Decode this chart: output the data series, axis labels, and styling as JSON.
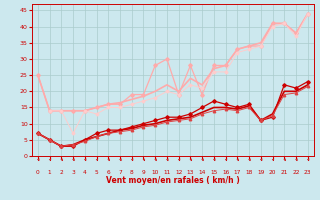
{
  "bg_color": "#cce8ee",
  "grid_color": "#aacccc",
  "xlabel": "Vent moyen/en rafales ( km/h )",
  "xlabel_color": "#cc0000",
  "tick_color": "#cc0000",
  "xlim": [
    -0.5,
    23.5
  ],
  "ylim": [
    0,
    47
  ],
  "yticks": [
    0,
    5,
    10,
    15,
    20,
    25,
    30,
    35,
    40,
    45
  ],
  "xticks": [
    0,
    1,
    2,
    3,
    4,
    5,
    6,
    7,
    8,
    9,
    10,
    11,
    12,
    13,
    14,
    15,
    16,
    17,
    18,
    19,
    20,
    21,
    22,
    23
  ],
  "series": [
    {
      "x": [
        0,
        1,
        2,
        3,
        4,
        5,
        6,
        7,
        8,
        9,
        10,
        11,
        12,
        13,
        14,
        15,
        16,
        17,
        18,
        19,
        20,
        21,
        22,
        23
      ],
      "y": [
        7,
        5,
        3,
        3,
        5,
        7,
        8,
        8,
        9,
        10,
        11,
        12,
        12,
        13,
        15,
        17,
        16,
        15,
        16,
        11,
        12,
        22,
        21,
        23
      ],
      "color": "#cc0000",
      "lw": 0.9,
      "marker": "D",
      "ms": 1.8
    },
    {
      "x": [
        0,
        1,
        2,
        3,
        4,
        5,
        6,
        7,
        8,
        9,
        10,
        11,
        12,
        13,
        14,
        15,
        16,
        17,
        18,
        19,
        20,
        21,
        22,
        23
      ],
      "y": [
        7,
        5,
        3,
        3.5,
        5,
        6,
        7,
        8,
        8.5,
        9.5,
        10,
        11,
        11.5,
        12,
        13.5,
        15,
        15,
        14.5,
        15.5,
        11,
        13,
        20,
        20,
        22
      ],
      "color": "#cc0000",
      "lw": 1.2,
      "marker": null,
      "ms": 0
    },
    {
      "x": [
        0,
        1,
        2,
        3,
        4,
        5,
        6,
        7,
        8,
        9,
        10,
        11,
        12,
        13,
        14,
        15,
        16,
        17,
        18,
        19,
        20,
        21,
        22,
        23
      ],
      "y": [
        7,
        5,
        3,
        3.5,
        4.5,
        6,
        7,
        7.5,
        8,
        9,
        9.5,
        10.5,
        11,
        11.5,
        13,
        14,
        14.5,
        14,
        15,
        11,
        12.5,
        19,
        19.5,
        21.5
      ],
      "color": "#dd4444",
      "lw": 0.7,
      "marker": "^",
      "ms": 1.8
    },
    {
      "x": [
        0,
        1,
        2,
        3,
        4,
        5,
        6,
        7,
        8,
        9,
        10,
        11,
        12,
        13,
        14,
        15,
        16,
        17,
        18,
        19,
        20,
        21,
        22,
        23
      ],
      "y": [
        25,
        14,
        14,
        14,
        14,
        15,
        16,
        16,
        19,
        19,
        28,
        30,
        19,
        28,
        19,
        28,
        28,
        33,
        34,
        34,
        41,
        41,
        38,
        44
      ],
      "color": "#ffaaaa",
      "lw": 0.9,
      "marker": "D",
      "ms": 1.8
    },
    {
      "x": [
        0,
        1,
        2,
        3,
        4,
        5,
        6,
        7,
        8,
        9,
        10,
        11,
        12,
        13,
        14,
        15,
        16,
        17,
        18,
        19,
        20,
        21,
        22,
        23
      ],
      "y": [
        25,
        14,
        14,
        14,
        14,
        15,
        16,
        16.5,
        17.5,
        18.5,
        20,
        22,
        20,
        24,
        22,
        27,
        28,
        33,
        34,
        35,
        41,
        41,
        38,
        44
      ],
      "color": "#ffaaaa",
      "lw": 1.2,
      "marker": null,
      "ms": 0
    },
    {
      "x": [
        1,
        2,
        3,
        4,
        5,
        6,
        7,
        8,
        9,
        10,
        11,
        12,
        13,
        14,
        15,
        16,
        17,
        18,
        19,
        20,
        21,
        22,
        23
      ],
      "y": [
        14,
        14,
        7,
        14,
        13,
        15,
        15,
        16,
        17,
        18,
        20,
        19,
        22,
        21,
        26,
        26,
        32,
        33,
        34,
        40,
        41,
        37,
        44
      ],
      "color": "#ffcccc",
      "lw": 0.7,
      "marker": "D",
      "ms": 1.5
    }
  ],
  "arrow_color": "#cc0000"
}
